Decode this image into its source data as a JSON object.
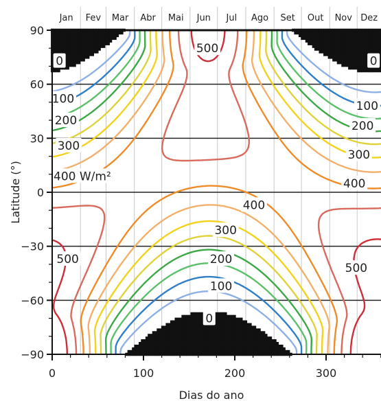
{
  "chart_data": {
    "type": "contour",
    "xlabel": "Dias do ano",
    "ylabel": "Latitude (°)",
    "xlim": [
      0,
      365
    ],
    "ylim": [
      -90,
      90
    ],
    "x_ticks": [
      0,
      100,
      200,
      300
    ],
    "y_ticks": [
      90,
      60,
      30,
      0,
      -30,
      -60,
      -90
    ],
    "months": [
      "Jan",
      "Fev",
      "Mar",
      "Abr",
      "Mai",
      "Jun",
      "Jul",
      "Ago",
      "Set",
      "Out",
      "Nov",
      "Dez"
    ],
    "contour_levels": [
      0,
      50,
      100,
      150,
      200,
      250,
      300,
      350,
      400,
      450,
      500
    ],
    "level_colors": {
      "0": "#111111",
      "50": "#8fb0e6",
      "100": "#2f7fc8",
      "150": "#5cc06a",
      "200": "#3ca846",
      "250": "#e0d23a",
      "300": "#f2d21a",
      "350": "#f3b06a",
      "400": "#ef8c2a",
      "450": "#d86a5e",
      "500": "#cc2f3a"
    },
    "solid_levels": [
      0,
      100,
      200,
      300,
      400,
      500
    ],
    "dashed_levels": [
      50,
      150,
      250,
      350,
      450
    ],
    "labels": [
      {
        "text": "0",
        "x": 8,
        "lat": 73
      },
      {
        "text": "0",
        "x": 352,
        "lat": 73
      },
      {
        "text": "0",
        "x": 172,
        "lat": -70
      },
      {
        "text": "100",
        "x": 12,
        "lat": 52
      },
      {
        "text": "100",
        "x": 345,
        "lat": 48
      },
      {
        "text": "100",
        "x": 185,
        "lat": -52
      },
      {
        "text": "200",
        "x": 15,
        "lat": 40
      },
      {
        "text": "200",
        "x": 340,
        "lat": 37
      },
      {
        "text": "200",
        "x": 185,
        "lat": -37
      },
      {
        "text": "300",
        "x": 18,
        "lat": 26
      },
      {
        "text": "300",
        "x": 336,
        "lat": 21
      },
      {
        "text": "300",
        "x": 190,
        "lat": -21
      },
      {
        "text": "400 W/m²",
        "x": 33,
        "lat": 9
      },
      {
        "text": "400",
        "x": 331,
        "lat": 5
      },
      {
        "text": "400",
        "x": 221,
        "lat": -7
      },
      {
        "text": "500",
        "x": 170,
        "lat": 80
      },
      {
        "text": "500",
        "x": 17,
        "lat": -37
      },
      {
        "text": "500",
        "x": 333,
        "lat": -42
      }
    ]
  }
}
